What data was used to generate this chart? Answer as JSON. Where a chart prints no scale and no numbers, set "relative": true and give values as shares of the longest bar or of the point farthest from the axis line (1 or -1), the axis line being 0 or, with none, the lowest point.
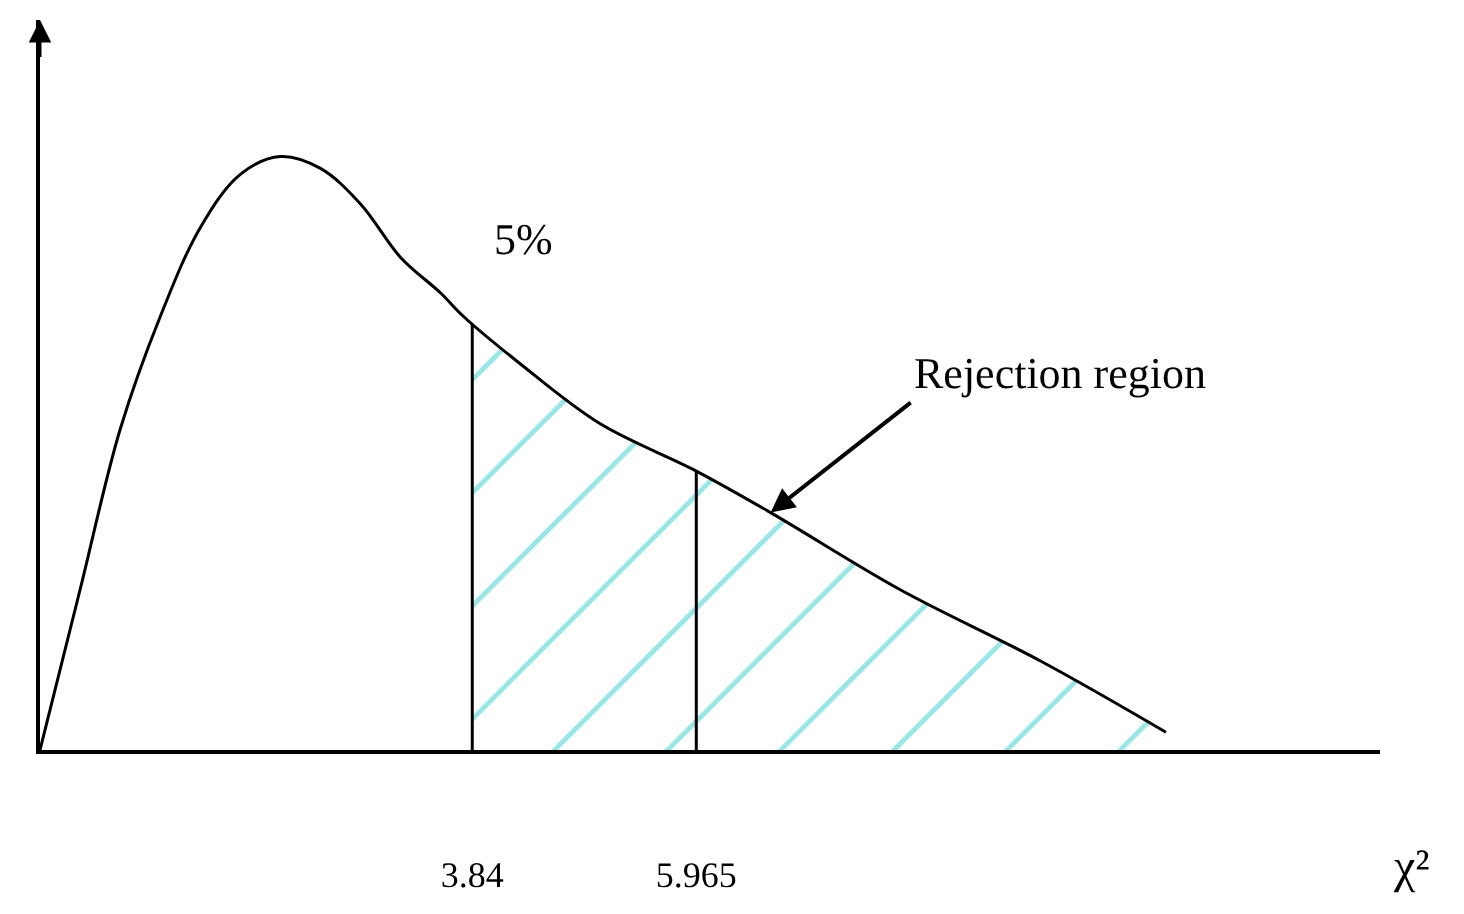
{
  "chart_data": {
    "type": "line",
    "relative": true,
    "xlabel": "χ²",
    "xlim": [
      -0.26,
      12.45
    ],
    "xticks": [
      3.84,
      5.965
    ],
    "tick_labels": "x",
    "marker": "none",
    "line_style": "solid",
    "series": [
      {
        "type": "area",
        "color": "#33cccc",
        "x": [
          3.84,
          4.3,
          5.05,
          5.965,
          6.67,
          7.9,
          9.23,
          10.42
        ],
        "values": [
          0.71,
          0.65,
          0.55,
          0.47,
          0.4,
          0.27,
          0.15,
          0.03
        ]
      },
      {
        "color": "#000000",
        "x": [
          -0.26,
          0.12,
          0.5,
          0.88,
          1.26,
          1.64,
          2.02,
          2.4,
          2.78,
          3.16,
          3.54,
          3.76,
          4.3,
          5.05,
          5.965,
          6.67,
          7.9,
          9.23,
          10.42
        ],
        "values": [
          0,
          0.27,
          0.54,
          0.73,
          0.88,
          0.97,
          1,
          0.98,
          0.92,
          0.83,
          0.77,
          0.73,
          0.65,
          0.55,
          0.47,
          0.4,
          0.27,
          0.15,
          0.03
        ]
      }
    ],
    "ref_lines": [
      {
        "axis": "x",
        "value": 3.84,
        "color": "#000000"
      },
      {
        "axis": "x",
        "value": 5.965,
        "color": "#000000"
      }
    ],
    "annotations": [
      "5%",
      {
        "text": "Rejection region",
        "x": 6.67,
        "y": 0.4
      }
    ]
  }
}
